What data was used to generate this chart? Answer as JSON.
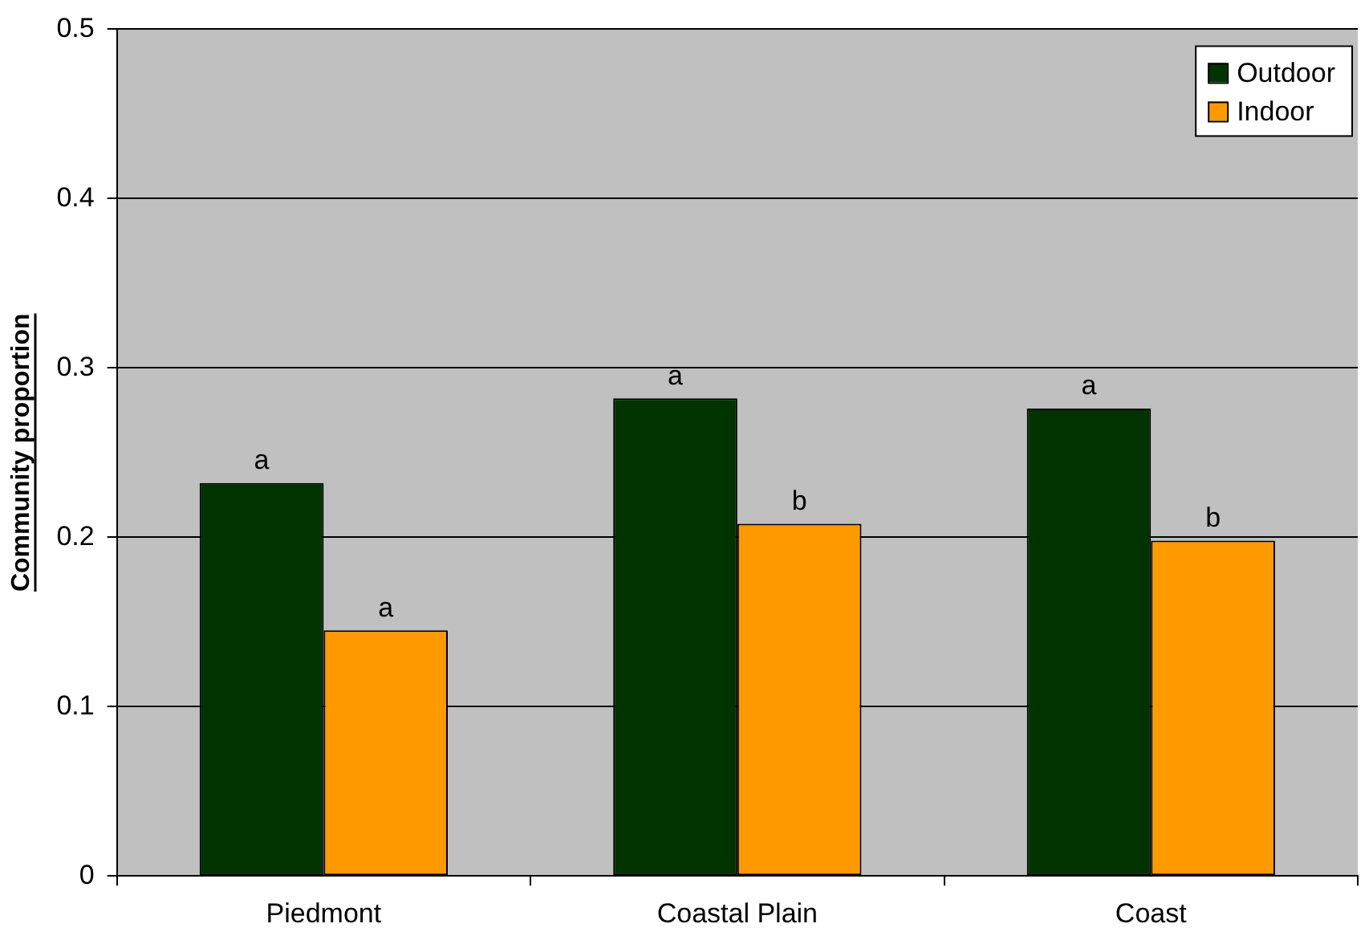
{
  "chart_data": {
    "type": "bar",
    "ylabel": "Community proportion",
    "categories": [
      "Piedmont",
      "Coastal Plain",
      "Coast"
    ],
    "series": [
      {
        "name": "Outdoor",
        "color": "#003300",
        "values": [
          0.232,
          0.282,
          0.276
        ]
      },
      {
        "name": "Indoor",
        "color": "#ff9900",
        "values": [
          0.145,
          0.208,
          0.198
        ]
      }
    ],
    "ylim": [
      0,
      0.5
    ],
    "yticks": [
      {
        "value": 0,
        "label": "0"
      },
      0.1,
      0.2,
      0.3,
      0.4,
      0.5
    ],
    "grid": "y",
    "legend": "top right",
    "annotations": [
      {
        "text": "a",
        "x": "Piedmont",
        "y": 0.232
      },
      {
        "text": "a",
        "x": "Piedmont",
        "y": 0.145
      },
      {
        "text": "a",
        "x": "Coastal Plain",
        "y": 0.282
      },
      {
        "text": "b",
        "x": "Coastal Plain",
        "y": 0.208
      },
      {
        "text": "a",
        "x": "Coast",
        "y": 0.276
      },
      {
        "text": "b",
        "x": "Coast",
        "y": 0.198
      }
    ]
  }
}
